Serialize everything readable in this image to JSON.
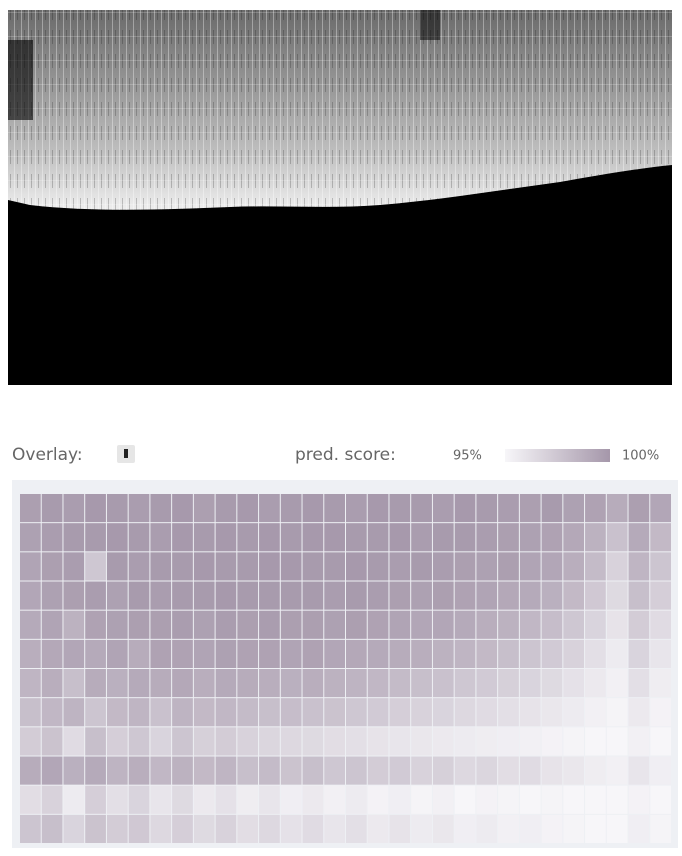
{
  "overlay": {
    "label": "Overlay:"
  },
  "legend": {
    "title": "pred. score:",
    "min": {
      "value": 95,
      "label": "95%"
    },
    "max": {
      "value": 100,
      "label": "100%"
    },
    "colors": [
      "#f7f6f9",
      "#a597aa"
    ]
  },
  "heatmap": {
    "values": [
      [
        99.6,
        99.8,
        99.7,
        99.9,
        99.8,
        99.7,
        99.8,
        99.9,
        99.6,
        99.8,
        99.9,
        99.7,
        99.8,
        99.9,
        99.8,
        99.7,
        99.9,
        99.8,
        99.8,
        99.7,
        99.9,
        99.8,
        99.7,
        99.6,
        99.8,
        99.5,
        99.4,
        98.9,
        99.6,
        99.2
      ],
      [
        99.5,
        99.7,
        99.8,
        99.8,
        99.9,
        99.8,
        99.7,
        99.9,
        99.8,
        99.9,
        99.8,
        99.9,
        99.8,
        99.9,
        99.9,
        99.8,
        99.8,
        99.9,
        99.7,
        99.8,
        99.8,
        99.7,
        99.6,
        99.5,
        99.4,
        99.1,
        98.6,
        97.8,
        99.0,
        98.2
      ],
      [
        99.3,
        99.6,
        99.7,
        97.5,
        99.8,
        99.7,
        99.8,
        99.8,
        99.9,
        99.8,
        99.8,
        99.9,
        99.9,
        99.8,
        99.8,
        99.9,
        99.8,
        99.7,
        99.8,
        99.7,
        99.6,
        99.5,
        99.6,
        99.3,
        99.2,
        98.8,
        98.1,
        96.9,
        98.4,
        97.6
      ],
      [
        99.2,
        99.5,
        99.6,
        99.7,
        99.5,
        99.8,
        99.7,
        99.8,
        99.8,
        99.9,
        99.8,
        99.8,
        99.8,
        99.8,
        99.7,
        99.8,
        99.7,
        99.6,
        99.5,
        99.6,
        99.4,
        99.3,
        99.1,
        99.0,
        98.7,
        98.2,
        97.4,
        96.5,
        97.9,
        97.1
      ],
      [
        99.0,
        99.3,
        98.6,
        99.4,
        99.5,
        99.6,
        99.6,
        99.7,
        99.5,
        99.7,
        99.6,
        99.7,
        99.6,
        99.6,
        99.5,
        99.6,
        99.4,
        99.3,
        99.2,
        99.2,
        99.0,
        98.8,
        98.6,
        98.3,
        98.0,
        97.5,
        96.8,
        96.0,
        97.2,
        96.4
      ],
      [
        98.8,
        99.1,
        99.2,
        99.0,
        99.3,
        98.9,
        99.4,
        99.4,
        99.3,
        99.5,
        99.4,
        99.4,
        99.3,
        99.4,
        99.2,
        99.1,
        99.0,
        98.9,
        98.8,
        98.6,
        98.4,
        98.2,
        97.9,
        97.6,
        97.3,
        96.9,
        96.2,
        95.6,
        96.8,
        95.9
      ],
      [
        98.4,
        98.8,
        97.9,
        98.9,
        98.7,
        99.0,
        98.9,
        99.1,
        98.8,
        99.0,
        98.9,
        98.8,
        98.7,
        98.8,
        98.6,
        98.5,
        98.3,
        98.1,
        97.9,
        97.8,
        97.5,
        97.3,
        97.0,
        96.8,
        96.5,
        96.1,
        95.7,
        95.3,
        96.2,
        95.5
      ],
      [
        97.9,
        98.3,
        98.5,
        97.6,
        98.2,
        98.4,
        97.8,
        98.5,
        98.2,
        98.3,
        98.1,
        97.9,
        98.0,
        97.8,
        97.7,
        97.5,
        97.3,
        97.1,
        96.9,
        96.8,
        96.6,
        96.4,
        96.2,
        96.0,
        95.8,
        95.6,
        95.3,
        95.1,
        95.7,
        95.2
      ],
      [
        97.2,
        97.7,
        96.4,
        97.9,
        97.1,
        97.5,
        96.8,
        97.6,
        97.0,
        97.2,
        96.9,
        96.7,
        96.6,
        96.5,
        96.3,
        96.2,
        96.0,
        95.9,
        95.8,
        95.7,
        95.6,
        95.5,
        95.4,
        95.3,
        95.2,
        95.1,
        95.0,
        95.0,
        95.3,
        95.0
      ],
      [
        98.9,
        99.2,
        98.7,
        99.0,
        98.5,
        98.8,
        98.3,
        98.6,
        98.2,
        98.4,
        97.9,
        98.1,
        97.7,
        97.9,
        97.5,
        97.6,
        97.2,
        97.3,
        96.9,
        97.0,
        96.6,
        96.7,
        96.3,
        96.4,
        96.0,
        95.8,
        95.5,
        95.3,
        95.9,
        95.4
      ],
      [
        96.3,
        96.9,
        95.6,
        97.1,
        96.2,
        96.8,
        95.9,
        96.5,
        95.7,
        96.1,
        95.5,
        95.9,
        95.4,
        95.7,
        95.3,
        95.6,
        95.2,
        95.4,
        95.1,
        95.3,
        95.0,
        95.2,
        95.1,
        95.0,
        95.1,
        95.0,
        95.0,
        95.0,
        95.2,
        95.0
      ],
      [
        97.6,
        97.9,
        96.8,
        97.7,
        97.2,
        97.4,
        96.6,
        97.1,
        96.5,
        96.9,
        96.3,
        96.6,
        96.1,
        96.4,
        95.9,
        96.2,
        95.7,
        96.0,
        95.6,
        95.8,
        95.4,
        95.6,
        95.3,
        95.4,
        95.2,
        95.1,
        95.0,
        95.0,
        95.4,
        95.1
      ]
    ]
  }
}
